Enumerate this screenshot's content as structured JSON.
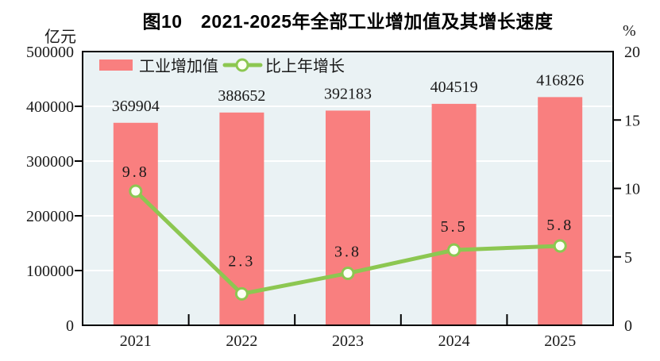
{
  "figure": {
    "title": "图10　2021-2025年全部工业增加值及其增长速度",
    "left_unit": "亿元",
    "right_unit": "%"
  },
  "legend": {
    "bar_label": "工业增加值",
    "line_label": "比上年增长"
  },
  "colors": {
    "bar": "#F97F7F",
    "line": "#8CC751",
    "marker_fill": "#FDFFF4",
    "plot_bg": "#EAF2F4",
    "grid": "#FFFFFF",
    "axis": "#000000",
    "text": "#1a1a1a"
  },
  "chart_data": {
    "type": "bar",
    "categories": [
      "2021",
      "2022",
      "2023",
      "2024",
      "2025"
    ],
    "series": [
      {
        "name": "工业增加值",
        "type": "bar",
        "axis": "left",
        "values": [
          369904,
          388652,
          392183,
          404519,
          416826
        ]
      },
      {
        "name": "比上年增长",
        "type": "line",
        "axis": "right",
        "values": [
          9.8,
          2.3,
          3.8,
          5.5,
          5.8
        ],
        "label_offsets": [
          25,
          42,
          28,
          30,
          27
        ]
      }
    ],
    "title": "图10　2021-2025年全部工业增加值及其增长速度",
    "xlabel": "",
    "ylabel_left": "亿元",
    "ylabel_right": "%",
    "left_axis": {
      "ticks": [
        0,
        100000,
        200000,
        300000,
        400000,
        500000
      ],
      "range": [
        0,
        500000
      ]
    },
    "right_axis": {
      "ticks": [
        0,
        5,
        10,
        15,
        20
      ],
      "range": [
        0,
        20
      ]
    },
    "grid": true,
    "legend_position": "top-left-inside"
  }
}
